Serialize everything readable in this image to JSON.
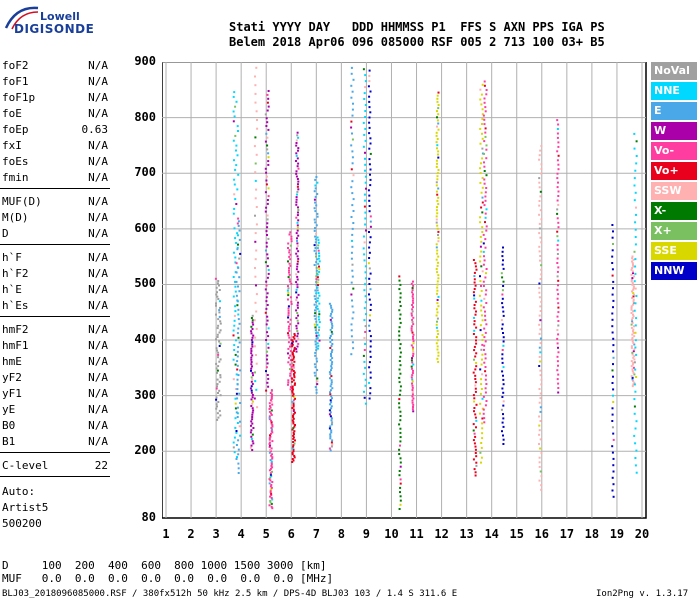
{
  "logo": {
    "top": "Lowell",
    "main": "DIGISONDE"
  },
  "header": {
    "labels": "Stati YYYY DAY   DDD HHMMSS P1  FFS S AXN PPS IGA PS",
    "values": "Belem 2018 Apr06 096 085000 RSF 005 2 713 100 03+ B5"
  },
  "params_groups": [
    [
      [
        "foF2",
        "N/A"
      ],
      [
        "foF1",
        "N/A"
      ],
      [
        "foF1p",
        "N/A"
      ],
      [
        "foE",
        "N/A"
      ],
      [
        "foEp",
        "0.63"
      ],
      [
        "fxI",
        "N/A"
      ],
      [
        "foEs",
        "N/A"
      ],
      [
        "fmin",
        "N/A"
      ]
    ],
    [
      [
        "MUF(D)",
        "N/A"
      ],
      [
        "M(D)",
        "N/A"
      ],
      [
        "D",
        "N/A"
      ]
    ],
    [
      [
        "h`F",
        "N/A"
      ],
      [
        "h`F2",
        "N/A"
      ],
      [
        "h`E",
        "N/A"
      ],
      [
        "h`Es",
        "N/A"
      ]
    ],
    [
      [
        "hmF2",
        "N/A"
      ],
      [
        "hmF1",
        "N/A"
      ],
      [
        "hmE",
        "N/A"
      ],
      [
        "yF2",
        "N/A"
      ],
      [
        "yF1",
        "N/A"
      ],
      [
        "yE",
        "N/A"
      ],
      [
        "B0",
        "N/A"
      ],
      [
        "B1",
        "N/A"
      ]
    ],
    [
      [
        "C-level",
        "22"
      ]
    ]
  ],
  "auto": [
    "Auto:",
    "Artist5",
    "500200"
  ],
  "plot": {
    "y_ticks": [
      "900",
      "800",
      "700",
      "600",
      "500",
      "400",
      "300",
      "200",
      "80"
    ],
    "x_ticks": [
      "1",
      "2",
      "3",
      "4",
      "5",
      "6",
      "7",
      "8",
      "9",
      "10",
      "11",
      "12",
      "13",
      "14",
      "15",
      "16",
      "17",
      "18",
      "19",
      "20"
    ]
  },
  "legend": [
    {
      "label": "NoVal",
      "color": "#a0a0a0"
    },
    {
      "label": "NNE",
      "color": "#00d8ff"
    },
    {
      "label": "E",
      "color": "#4aa8e8"
    },
    {
      "label": "W",
      "color": "#aa00aa"
    },
    {
      "label": "Vo-",
      "color": "#ff3ca0"
    },
    {
      "label": "Vo+",
      "color": "#e8001c"
    },
    {
      "label": "SSW",
      "color": "#ffb0b0"
    },
    {
      "label": "X-",
      "color": "#007a00"
    },
    {
      "label": "X+",
      "color": "#7ac060"
    },
    {
      "label": "SSE",
      "color": "#d8d800"
    },
    {
      "label": "NNW",
      "color": "#0000c8"
    }
  ],
  "footer": {
    "row_d": "D     100  200  400  600  800 1000 1500 3000 [km]",
    "row_muf": "MUF   0.0  0.0  0.0  0.0  0.0  0.0  0.0  0.0 [MHz]",
    "file_info": "BLJ03_2018096085000.RSF / 380fx512h 50 kHz 2.5 km / DPS-4D BLJ03 103 / 1.4 S 311.6 E",
    "version": "Ion2Png v. 1.3.17"
  }
}
